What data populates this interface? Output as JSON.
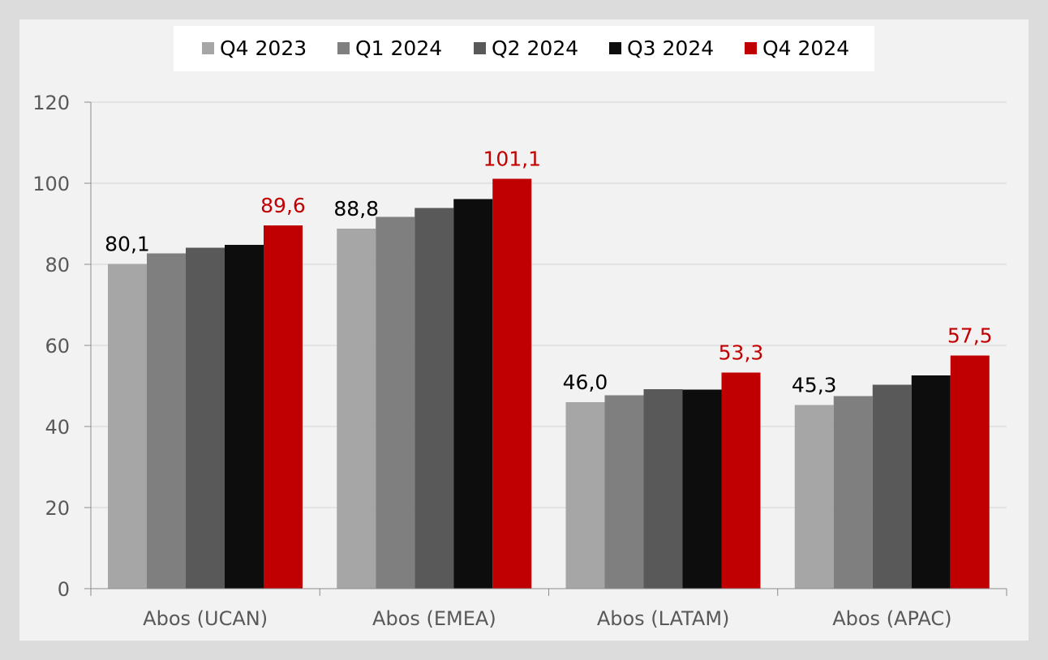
{
  "chart_data": {
    "type": "bar",
    "categories": [
      "Abos (UCAN)",
      "Abos (EMEA)",
      "Abos (LATAM)",
      "Abos (APAC)"
    ],
    "series": [
      {
        "name": "Q4 2023",
        "color": "#a6a6a6",
        "values": [
          80.1,
          88.8,
          46.0,
          45.3
        ]
      },
      {
        "name": "Q1 2024",
        "color": "#7f7f7f",
        "values": [
          82.7,
          91.7,
          47.7,
          47.5
        ]
      },
      {
        "name": "Q2 2024",
        "color": "#595959",
        "values": [
          84.1,
          93.9,
          49.2,
          50.3
        ]
      },
      {
        "name": "Q3 2024",
        "color": "#0d0d0d",
        "values": [
          84.8,
          96.1,
          49.1,
          52.6
        ]
      },
      {
        "name": "Q4 2024",
        "color": "#c00000",
        "values": [
          89.6,
          101.1,
          53.3,
          57.5
        ]
      }
    ],
    "data_labels": [
      {
        "series": 0,
        "category": 0,
        "text": "80,1",
        "color": "#000000"
      },
      {
        "series": 0,
        "category": 1,
        "text": "88,8",
        "color": "#000000"
      },
      {
        "series": 0,
        "category": 2,
        "text": "46,0",
        "color": "#000000"
      },
      {
        "series": 0,
        "category": 3,
        "text": "45,3",
        "color": "#000000"
      },
      {
        "series": 4,
        "category": 0,
        "text": "89,6",
        "color": "#c00000"
      },
      {
        "series": 4,
        "category": 1,
        "text": "101,1",
        "color": "#c00000"
      },
      {
        "series": 4,
        "category": 2,
        "text": "53,3",
        "color": "#c00000"
      },
      {
        "series": 4,
        "category": 3,
        "text": "57,5",
        "color": "#c00000"
      }
    ],
    "y_ticks": [
      "0",
      "20",
      "40",
      "60",
      "80",
      "100",
      "120"
    ],
    "ylim": [
      0,
      120
    ],
    "y_step": 20,
    "grid": true,
    "legend_position": "top-center"
  }
}
